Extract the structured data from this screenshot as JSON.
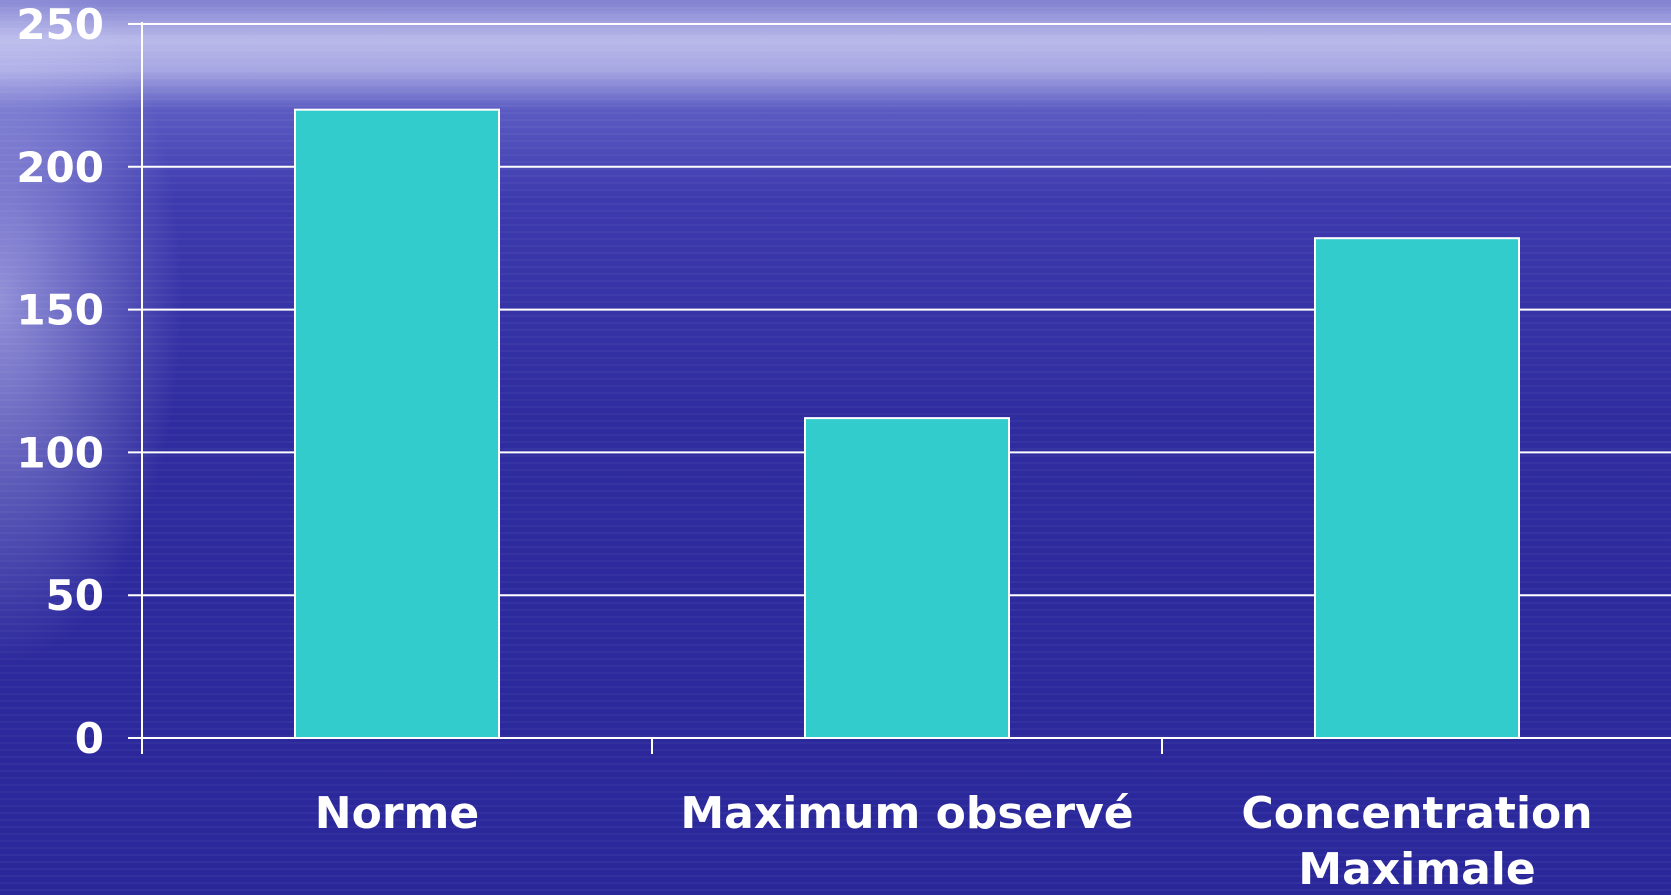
{
  "chart_data": {
    "type": "bar",
    "categories": [
      "Norme",
      "Maximum observé",
      "Concentration Maximale"
    ],
    "category_lines": [
      [
        "Norme"
      ],
      [
        "Maximum observé"
      ],
      [
        "Concentration",
        "Maximale"
      ]
    ],
    "values": [
      220,
      112,
      175
    ],
    "title": "",
    "xlabel": "",
    "ylabel": "",
    "ylim": [
      0,
      250
    ],
    "yticks": [
      0,
      50,
      100,
      150,
      200,
      250
    ],
    "ytick_labels": [
      "0",
      "50",
      "100",
      "150",
      "200",
      "250"
    ],
    "grid": true,
    "legend": "none",
    "bar_color": "#33cccc",
    "text_color": "#ffffff"
  }
}
